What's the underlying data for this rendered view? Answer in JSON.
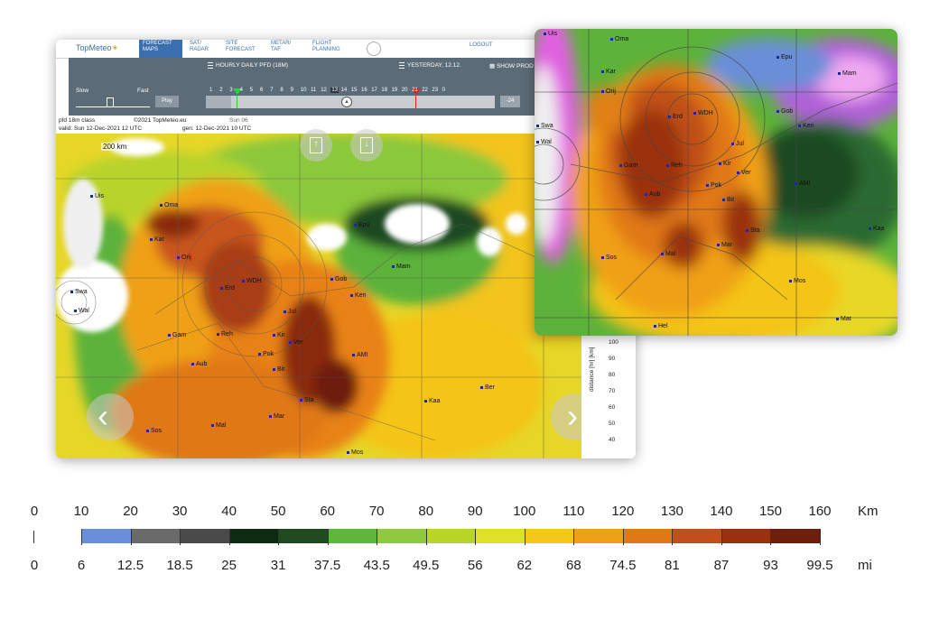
{
  "app": {
    "logo": "TopMeteo",
    "nav": [
      {
        "label": "FORECAST MAPS",
        "active": true
      },
      {
        "label": "SAT/ RADAR",
        "active": false
      },
      {
        "label": "SITE FORECAST",
        "active": false
      },
      {
        "label": "METAR/ TAF",
        "active": false
      },
      {
        "label": "FLIGHT PLANNING",
        "active": false
      }
    ],
    "logout": "LOGOUT"
  },
  "toolbar": {
    "product": "HOURLY DAILY PFD (18M)",
    "date": "YESTERDAY, 12.12.",
    "show_products": "SHOW PROD",
    "slow": "Slow",
    "fast": "Fast",
    "play": "Play",
    "hours": [
      "1",
      "2",
      "3",
      "4",
      "5",
      "6",
      "7",
      "8",
      "9",
      "10",
      "11",
      "12",
      "13",
      "14",
      "15",
      "16",
      "17",
      "18",
      "19",
      "20",
      "21",
      "22",
      "23",
      "0"
    ],
    "selected_hour": "13",
    "minus24": "-24"
  },
  "map_header": {
    "line1": "pfd 18m class",
    "copyright": "©2021 TopMeteo.eu",
    "day": "Sun 06",
    "line2_valid": "valid:  Sun  12-Dec-2021  12 UTC",
    "line2_gen": "gen:  12-Dec-2021  10 UTC",
    "scale": "200 km"
  },
  "main_places": [
    "Uis",
    "Oma",
    "Kar",
    "Orij",
    "Erd",
    "WDH",
    "Swa",
    "Wal",
    "Gam",
    "Reh",
    "Kir",
    "Ver",
    "Jul",
    "Pok",
    "Bit",
    "Aub",
    "AMI",
    "Sta",
    "Mal",
    "Mar",
    "Sos",
    "Mos",
    "Kaa",
    "Ber",
    "Epu",
    "Mam",
    "Gob",
    "Ken"
  ],
  "inset_places": [
    "Uis",
    "Oma",
    "Epu",
    "Kar",
    "Orij",
    "Mam",
    "Erd",
    "WDH",
    "Gob",
    "Ken",
    "Swa",
    "Wal",
    "Jul",
    "Gam",
    "Reh",
    "Kir",
    "Ver",
    "AMI",
    "Pok",
    "Aub",
    "Bit",
    "Sta",
    "Kaa",
    "Mal",
    "Mar",
    "Sos",
    "Mos",
    "Hel",
    "Mat"
  ],
  "distance_axis": {
    "label": "distance [hr] [km]",
    "ticks": [
      "100",
      "90",
      "80",
      "70",
      "60",
      "50",
      "40"
    ]
  },
  "legend": {
    "km_ticks": [
      "0",
      "10",
      "20",
      "30",
      "40",
      "50",
      "60",
      "70",
      "80",
      "90",
      "100",
      "110",
      "120",
      "130",
      "140",
      "150",
      "160"
    ],
    "km_unit": "Km",
    "mi_ticks": [
      "0",
      "6",
      "12.5",
      "18.5",
      "25",
      "31",
      "37.5",
      "43.5",
      "49.5",
      "56",
      "62",
      "68",
      "74.5",
      "81",
      "87",
      "93",
      "99.5"
    ],
    "mi_unit": "mi",
    "colors": [
      "#6a8fd8",
      "#6a6a6a",
      "#4a4a4a",
      "#0f2a12",
      "#1f4a22",
      "#5db83a",
      "#8fca3a",
      "#b8d428",
      "#e0e028",
      "#f4c818",
      "#f0a018",
      "#e07818",
      "#c05018",
      "#9a3010",
      "#6e1e0c",
      "#4a140a"
    ]
  }
}
